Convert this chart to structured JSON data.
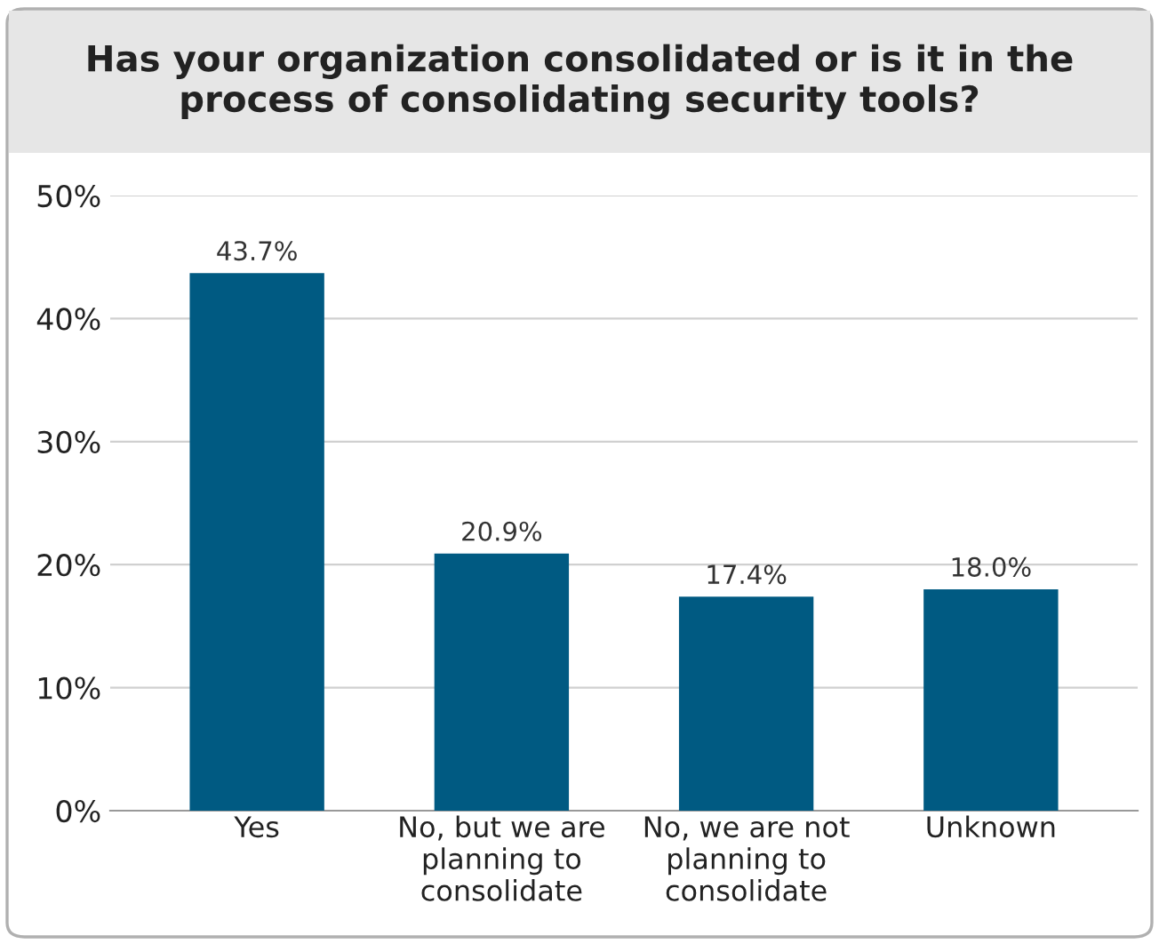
{
  "chart_data": {
    "type": "bar",
    "title": "Has your organization consolidated or is it in the\nprocess of consolidating security tools?",
    "categories": [
      "Yes",
      "No, but we are\nplanning to\nconsolidate",
      "No, we are not\nplanning to\nconsolidate",
      "Unknown"
    ],
    "values": [
      43.7,
      20.9,
      17.4,
      18.0
    ],
    "value_labels": [
      "43.7%",
      "20.9%",
      "17.4%",
      "18.0%"
    ],
    "color": "#005a82",
    "ylim": [
      0,
      50
    ],
    "yticks": [
      {
        "value": 0,
        "label": "0%"
      },
      {
        "value": 10,
        "label": "10%"
      },
      {
        "value": 20,
        "label": "20%"
      },
      {
        "value": 30,
        "label": "30%"
      },
      {
        "value": 40,
        "label": "40%"
      },
      {
        "value": 50,
        "label": "50%"
      }
    ],
    "grid": "y"
  }
}
